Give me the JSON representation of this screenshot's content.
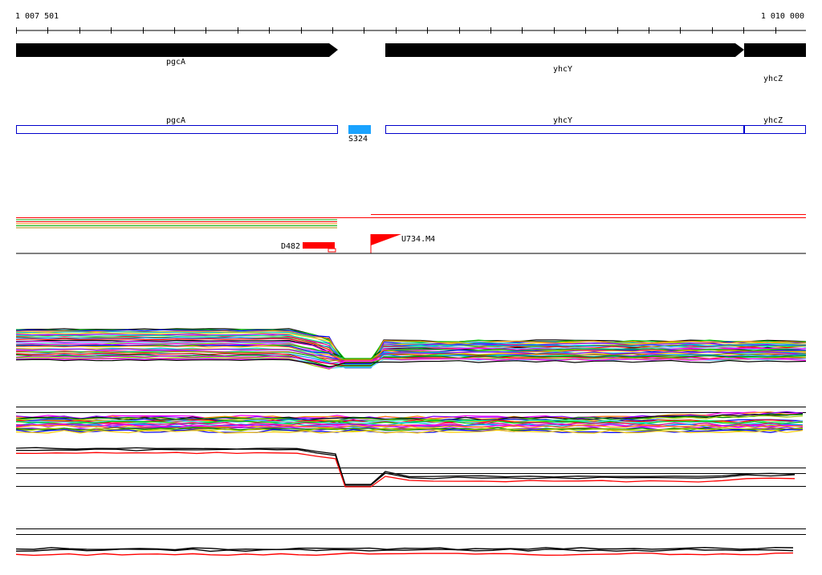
{
  "axis": {
    "start_label": "1 007 501",
    "end_label": "1 010 000"
  },
  "genes": [
    {
      "name": "pgcA"
    },
    {
      "name": "yhcY"
    },
    {
      "name": "yhcZ"
    }
  ],
  "cds_track": [
    {
      "name": "pgcA"
    },
    {
      "name": "yhcY"
    },
    {
      "name": "yhcZ"
    }
  ],
  "segment": {
    "label": "S324",
    "color": "#1aa3ff"
  },
  "features": {
    "downstream_label": "D482",
    "upstream_label": "U734.M4",
    "color": "#ff0000"
  },
  "colors": {
    "track_line": "#000000",
    "gene_arrow": "#000000",
    "cds_box": "#0000cc",
    "primary_signal": "#ff0000"
  }
}
